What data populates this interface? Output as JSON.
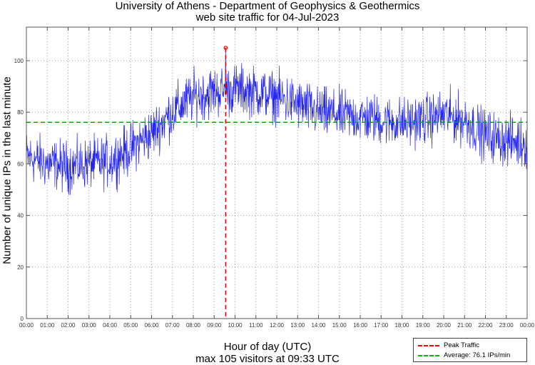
{
  "chart_data": {
    "type": "line",
    "title": "University of Athens - Department of Geophysics & Geothermics",
    "subtitle": "web site traffic for 04-Jul-2023",
    "xlabel": "Hour of day (UTC)",
    "xlabel2": "max 105 visitors at 09:33 UTC",
    "ylabel": "Number of unique IPs in the last minute",
    "ylim": [
      0,
      113
    ],
    "xlim_hours": [
      0,
      24
    ],
    "grid": true,
    "y_ticks": [
      0,
      20,
      40,
      60,
      80,
      100
    ],
    "x_tick_labels": [
      "00:00",
      "01:00",
      "02:00",
      "03:00",
      "04:00",
      "05:00",
      "06:00",
      "07:00",
      "08:00",
      "09:00",
      "10:00",
      "11:00",
      "12:00",
      "13:00",
      "14:00",
      "15:00",
      "16:00",
      "17:00",
      "18:00",
      "19:00",
      "20:00",
      "21:00",
      "22:00",
      "23:00",
      "00:00"
    ],
    "series": [
      {
        "name": "Unique IPs per minute",
        "color": "#0000ee",
        "hourly_mean": [
          63,
          60,
          59,
          60,
          61,
          66,
          72,
          80,
          86,
          88,
          89,
          88,
          86,
          83,
          80,
          79,
          78,
          77,
          76,
          77,
          79,
          77,
          71,
          69,
          68
        ],
        "noise_amplitude": 6,
        "samples_per_hour": 60
      }
    ],
    "peak": {
      "value": 105,
      "time": "09:33",
      "hour": 9.55,
      "color": "#ee0000"
    },
    "average": {
      "value": 76.1,
      "color": "#00aa00"
    },
    "legend": {
      "position": "bottom-right",
      "entries": [
        {
          "label": "Peak Traffic",
          "color": "#ff0000"
        },
        {
          "label": "Average: 76.1 IPs/min",
          "color": "#00bb00"
        }
      ]
    }
  }
}
